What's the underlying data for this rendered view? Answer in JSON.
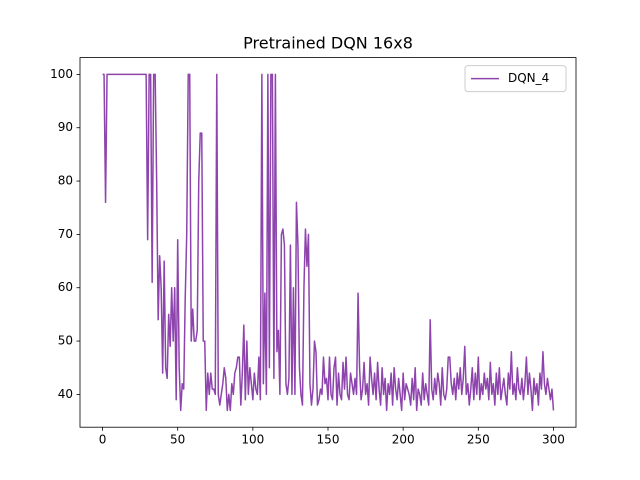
{
  "chart_data": {
    "type": "line",
    "title": "Pretrained DQN 16x8",
    "x": [
      0,
      1,
      2,
      3,
      4,
      5,
      6,
      7,
      8,
      9,
      10,
      11,
      12,
      13,
      14,
      15,
      16,
      17,
      18,
      19,
      20,
      21,
      22,
      23,
      24,
      25,
      26,
      27,
      28,
      29,
      30,
      31,
      32,
      33,
      34,
      35,
      36,
      37,
      38,
      39,
      40,
      41,
      42,
      43,
      44,
      45,
      46,
      47,
      48,
      49,
      50,
      51,
      52,
      53,
      54,
      55,
      56,
      57,
      58,
      59,
      60,
      61,
      62,
      63,
      64,
      65,
      66,
      67,
      68,
      69,
      70,
      71,
      72,
      73,
      74,
      75,
      76,
      77,
      78,
      79,
      80,
      81,
      82,
      83,
      84,
      85,
      86,
      87,
      88,
      89,
      90,
      91,
      92,
      93,
      94,
      95,
      96,
      97,
      98,
      99,
      100,
      101,
      102,
      103,
      104,
      105,
      106,
      107,
      108,
      109,
      110,
      111,
      112,
      113,
      114,
      115,
      116,
      117,
      118,
      119,
      120,
      121,
      122,
      123,
      124,
      125,
      126,
      127,
      128,
      129,
      130,
      131,
      132,
      133,
      134,
      135,
      136,
      137,
      138,
      139,
      140,
      141,
      142,
      143,
      144,
      145,
      146,
      147,
      148,
      149,
      150,
      151,
      152,
      153,
      154,
      155,
      156,
      157,
      158,
      159,
      160,
      161,
      162,
      163,
      164,
      165,
      166,
      167,
      168,
      169,
      170,
      171,
      172,
      173,
      174,
      175,
      176,
      177,
      178,
      179,
      180,
      181,
      182,
      183,
      184,
      185,
      186,
      187,
      188,
      189,
      190,
      191,
      192,
      193,
      194,
      195,
      196,
      197,
      198,
      199,
      200,
      201,
      202,
      203,
      204,
      205,
      206,
      207,
      208,
      209,
      210,
      211,
      212,
      213,
      214,
      215,
      216,
      217,
      218,
      219,
      220,
      221,
      222,
      223,
      224,
      225,
      226,
      227,
      228,
      229,
      230,
      231,
      232,
      233,
      234,
      235,
      236,
      237,
      238,
      239,
      240,
      241,
      242,
      243,
      244,
      245,
      246,
      247,
      248,
      249,
      250,
      251,
      252,
      253,
      254,
      255,
      256,
      257,
      258,
      259,
      260,
      261,
      262,
      263,
      264,
      265,
      266,
      267,
      268,
      269,
      270,
      271,
      272,
      273,
      274,
      275,
      276,
      277,
      278,
      279,
      280,
      281,
      282,
      283,
      284,
      285,
      286,
      287,
      288,
      289,
      290,
      291,
      292,
      293,
      294,
      295,
      296,
      297,
      298,
      299,
      300
    ],
    "series": [
      {
        "name": "DQN_4",
        "color": "#8e44ad",
        "values": [
          100,
          100,
          76,
          100,
          100,
          100,
          100,
          100,
          100,
          100,
          100,
          100,
          100,
          100,
          100,
          100,
          100,
          100,
          100,
          100,
          100,
          100,
          100,
          100,
          100,
          100,
          100,
          100,
          100,
          100,
          69,
          100,
          100,
          61,
          100,
          100,
          80,
          54,
          66,
          60,
          44,
          65,
          45,
          43,
          55,
          49,
          60,
          50,
          60,
          39,
          69,
          45,
          37,
          42,
          41,
          58,
          70,
          100,
          100,
          50,
          56,
          50,
          50,
          52,
          80,
          89,
          89,
          50,
          50,
          37,
          44,
          40,
          44,
          41,
          41,
          40,
          100,
          40,
          38,
          40,
          42,
          45,
          43,
          37,
          40,
          37,
          42,
          40,
          44,
          45,
          47,
          47,
          38,
          44,
          53,
          39,
          50,
          40,
          45,
          42,
          39,
          44,
          41,
          40,
          47,
          39,
          100,
          42,
          59,
          40,
          100,
          45,
          100,
          100,
          43,
          100,
          48,
          52,
          40,
          70,
          71,
          68,
          42,
          40,
          43,
          68,
          40,
          60,
          40,
          76,
          68,
          45,
          40,
          38,
          60,
          71,
          64,
          70,
          42,
          38,
          41,
          50,
          48,
          38,
          39,
          41,
          40,
          47,
          42,
          43,
          39,
          47,
          40,
          39,
          45,
          47,
          38,
          44,
          40,
          39,
          46,
          41,
          47,
          40,
          39,
          44,
          42,
          40,
          43,
          40,
          59,
          45,
          39,
          41,
          46,
          40,
          42,
          38,
          47,
          43,
          40,
          44,
          39,
          46,
          41,
          38,
          45,
          40,
          43,
          37,
          42,
          40,
          44,
          38,
          45,
          41,
          39,
          43,
          40,
          37,
          44,
          39,
          42,
          41,
          40,
          38,
          43,
          39,
          45,
          37,
          41,
          40,
          38,
          44,
          39,
          42,
          40,
          38,
          54,
          41,
          39,
          43,
          40,
          44,
          42,
          38,
          45,
          40,
          39,
          41,
          47,
          47,
          42,
          40,
          43,
          39,
          44,
          41,
          45,
          40,
          43,
          49,
          40,
          42,
          38,
          41,
          45,
          39,
          44,
          40,
          47,
          39,
          42,
          40,
          44,
          41,
          43,
          39,
          46,
          40,
          42,
          38,
          44,
          40,
          45,
          39,
          41,
          43,
          40,
          38,
          44,
          41,
          48,
          40,
          42,
          39,
          45,
          41,
          40,
          43,
          39,
          42,
          47,
          40,
          44,
          41,
          37,
          43,
          40,
          42,
          38,
          44,
          41,
          48,
          42,
          40,
          43,
          41,
          39,
          41,
          37
        ]
      }
    ],
    "xlim": [
      -15,
      315
    ],
    "ylim": [
      33.85,
      103.15
    ],
    "xticks": [
      0,
      50,
      100,
      150,
      200,
      250,
      300
    ],
    "yticks": [
      40,
      50,
      60,
      70,
      80,
      90,
      100
    ],
    "legend": "upper right"
  }
}
